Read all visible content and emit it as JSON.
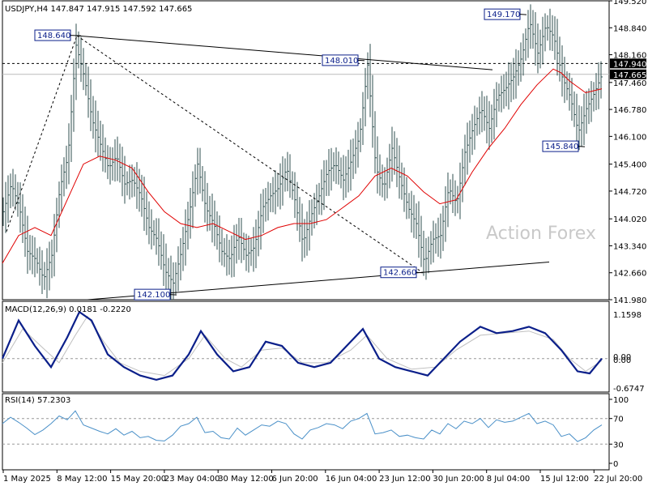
{
  "chart_data": [
    {
      "type": "candlestick",
      "header": "USDJPY,H4  147.847 147.915 147.592 147.665",
      "watermark": "Action Forex",
      "y_ticks": [
        "149.520",
        "148.840",
        "148.160",
        "147.460",
        "146.780",
        "146.100",
        "145.400",
        "144.720",
        "144.020",
        "143.340",
        "142.660",
        "141.980"
      ],
      "ylim": [
        141.98,
        149.52
      ],
      "x_ticks": [
        "1 May 2025",
        "8 May 12:00",
        "15 May 20:00",
        "23 May 04:00",
        "30 May 12:00",
        "6 Jun 20:00",
        "16 Jun 04:00",
        "23 Jun 12:00",
        "30 Jun 20:00",
        "8 Jul 04:00",
        "15 Jul 12:00",
        "22 Jul 20:00"
      ],
      "price_labels": {
        "high": "147.940",
        "last": "147.665"
      },
      "annotations": [
        "148.640",
        "148.010",
        "149.170",
        "145.840",
        "142.100",
        "142.660"
      ],
      "close_path": [
        [
          0,
          144.2
        ],
        [
          10,
          144.9
        ],
        [
          20,
          144.3
        ],
        [
          30,
          143.2
        ],
        [
          40,
          143.0
        ],
        [
          50,
          142.5
        ],
        [
          60,
          143.1
        ],
        [
          70,
          144.8
        ],
        [
          80,
          145.6
        ],
        [
          90,
          148.4
        ],
        [
          100,
          147.6
        ],
        [
          110,
          146.5
        ],
        [
          120,
          145.9
        ],
        [
          130,
          145.3
        ],
        [
          140,
          145.6
        ],
        [
          150,
          144.9
        ],
        [
          160,
          145.0
        ],
        [
          170,
          144.6
        ],
        [
          180,
          143.8
        ],
        [
          190,
          143.5
        ],
        [
          200,
          142.7
        ],
        [
          210,
          142.4
        ],
        [
          220,
          143.2
        ],
        [
          230,
          144.2
        ],
        [
          240,
          145.4
        ],
        [
          250,
          144.3
        ],
        [
          260,
          143.9
        ],
        [
          270,
          143.2
        ],
        [
          280,
          143.0
        ],
        [
          290,
          143.6
        ],
        [
          300,
          143.1
        ],
        [
          310,
          143.3
        ],
        [
          320,
          144.3
        ],
        [
          330,
          144.6
        ],
        [
          340,
          144.8
        ],
        [
          350,
          145.3
        ],
        [
          360,
          144.5
        ],
        [
          370,
          143.4
        ],
        [
          380,
          144.1
        ],
        [
          390,
          144.6
        ],
        [
          400,
          145.2
        ],
        [
          410,
          145.4
        ],
        [
          420,
          145.0
        ],
        [
          430,
          145.5
        ],
        [
          440,
          146.1
        ],
        [
          450,
          147.9
        ],
        [
          460,
          145.3
        ],
        [
          470,
          144.8
        ],
        [
          480,
          145.8
        ],
        [
          490,
          145.0
        ],
        [
          500,
          144.3
        ],
        [
          510,
          143.9
        ],
        [
          520,
          142.9
        ],
        [
          530,
          143.5
        ],
        [
          540,
          143.6
        ],
        [
          550,
          144.8
        ],
        [
          560,
          144.4
        ],
        [
          570,
          145.7
        ],
        [
          580,
          146.3
        ],
        [
          590,
          146.8
        ],
        [
          600,
          146.3
        ],
        [
          610,
          147.1
        ],
        [
          620,
          147.3
        ],
        [
          630,
          147.6
        ],
        [
          640,
          148.1
        ],
        [
          650,
          149.0
        ],
        [
          660,
          148.2
        ],
        [
          670,
          148.9
        ],
        [
          680,
          148.6
        ],
        [
          690,
          147.6
        ],
        [
          700,
          147.1
        ],
        [
          710,
          146.2
        ],
        [
          720,
          146.8
        ],
        [
          730,
          147.2
        ],
        [
          740,
          147.7
        ]
      ],
      "ma_path": [
        [
          0,
          142.9
        ],
        [
          20,
          143.6
        ],
        [
          40,
          143.8
        ],
        [
          60,
          143.6
        ],
        [
          80,
          144.5
        ],
        [
          100,
          145.4
        ],
        [
          120,
          145.6
        ],
        [
          140,
          145.5
        ],
        [
          160,
          145.3
        ],
        [
          180,
          144.7
        ],
        [
          200,
          144.2
        ],
        [
          220,
          143.9
        ],
        [
          240,
          143.8
        ],
        [
          260,
          143.9
        ],
        [
          280,
          143.7
        ],
        [
          300,
          143.5
        ],
        [
          320,
          143.6
        ],
        [
          340,
          143.8
        ],
        [
          360,
          143.9
        ],
        [
          380,
          143.9
        ],
        [
          400,
          144.0
        ],
        [
          420,
          144.3
        ],
        [
          440,
          144.6
        ],
        [
          460,
          145.1
        ],
        [
          480,
          145.3
        ],
        [
          500,
          145.1
        ],
        [
          520,
          144.7
        ],
        [
          540,
          144.4
        ],
        [
          560,
          144.5
        ],
        [
          580,
          145.2
        ],
        [
          600,
          145.8
        ],
        [
          620,
          146.3
        ],
        [
          640,
          146.9
        ],
        [
          660,
          147.4
        ],
        [
          680,
          147.8
        ],
        [
          690,
          147.7
        ],
        [
          700,
          147.5
        ],
        [
          720,
          147.2
        ],
        [
          740,
          147.3
        ]
      ]
    },
    {
      "type": "line",
      "header": "MACD(12,26,9) 0.0181 -0.2220",
      "y_ticks": [
        "1.1598",
        "0.00",
        "0.00",
        "-0.6747"
      ],
      "ylim": [
        -0.6747,
        1.1598
      ],
      "macd_path": [
        [
          0,
          0.0
        ],
        [
          20,
          0.9
        ],
        [
          40,
          0.3
        ],
        [
          60,
          -0.2
        ],
        [
          80,
          0.5
        ],
        [
          95,
          1.1
        ],
        [
          110,
          0.9
        ],
        [
          130,
          0.1
        ],
        [
          150,
          -0.2
        ],
        [
          170,
          -0.4
        ],
        [
          190,
          -0.5
        ],
        [
          210,
          -0.4
        ],
        [
          230,
          0.1
        ],
        [
          245,
          0.65
        ],
        [
          265,
          0.1
        ],
        [
          285,
          -0.3
        ],
        [
          305,
          -0.2
        ],
        [
          325,
          0.4
        ],
        [
          345,
          0.3
        ],
        [
          365,
          -0.1
        ],
        [
          385,
          -0.2
        ],
        [
          405,
          -0.1
        ],
        [
          425,
          0.3
        ],
        [
          445,
          0.7
        ],
        [
          465,
          0.0
        ],
        [
          485,
          -0.2
        ],
        [
          505,
          -0.3
        ],
        [
          525,
          -0.4
        ],
        [
          545,
          0.0
        ],
        [
          565,
          0.4
        ],
        [
          590,
          0.75
        ],
        [
          610,
          0.6
        ],
        [
          630,
          0.65
        ],
        [
          650,
          0.75
        ],
        [
          670,
          0.6
        ],
        [
          690,
          0.2
        ],
        [
          710,
          -0.3
        ],
        [
          725,
          -0.35
        ],
        [
          740,
          0.0
        ]
      ],
      "signal_path": [
        [
          0,
          -0.1
        ],
        [
          25,
          0.7
        ],
        [
          50,
          0.25
        ],
        [
          70,
          -0.1
        ],
        [
          90,
          0.55
        ],
        [
          105,
          1.0
        ],
        [
          125,
          0.4
        ],
        [
          145,
          -0.1
        ],
        [
          170,
          -0.3
        ],
        [
          200,
          -0.4
        ],
        [
          230,
          0.0
        ],
        [
          250,
          0.55
        ],
        [
          275,
          0.0
        ],
        [
          295,
          -0.2
        ],
        [
          320,
          0.2
        ],
        [
          345,
          0.25
        ],
        [
          370,
          -0.1
        ],
        [
          400,
          -0.1
        ],
        [
          430,
          0.2
        ],
        [
          450,
          0.55
        ],
        [
          475,
          0.0
        ],
        [
          505,
          -0.25
        ],
        [
          535,
          -0.2
        ],
        [
          560,
          0.2
        ],
        [
          590,
          0.55
        ],
        [
          620,
          0.6
        ],
        [
          650,
          0.65
        ],
        [
          680,
          0.45
        ],
        [
          700,
          0.0
        ],
        [
          720,
          -0.3
        ],
        [
          740,
          -0.05
        ]
      ]
    },
    {
      "type": "line",
      "header": "RSI(14) 57.2303",
      "y_ticks": [
        "100",
        "70",
        "30",
        "0"
      ],
      "ylim": [
        0,
        100
      ],
      "rsi_path": [
        [
          0,
          62
        ],
        [
          10,
          72
        ],
        [
          20,
          64
        ],
        [
          30,
          55
        ],
        [
          40,
          45
        ],
        [
          50,
          52
        ],
        [
          60,
          62
        ],
        [
          70,
          74
        ],
        [
          80,
          68
        ],
        [
          90,
          82
        ],
        [
          100,
          60
        ],
        [
          110,
          55
        ],
        [
          120,
          50
        ],
        [
          130,
          46
        ],
        [
          140,
          54
        ],
        [
          150,
          44
        ],
        [
          160,
          50
        ],
        [
          170,
          40
        ],
        [
          180,
          42
        ],
        [
          190,
          36
        ],
        [
          200,
          35
        ],
        [
          210,
          44
        ],
        [
          220,
          58
        ],
        [
          230,
          62
        ],
        [
          240,
          72
        ],
        [
          250,
          48
        ],
        [
          260,
          50
        ],
        [
          270,
          40
        ],
        [
          280,
          38
        ],
        [
          290,
          55
        ],
        [
          300,
          44
        ],
        [
          310,
          52
        ],
        [
          320,
          60
        ],
        [
          330,
          58
        ],
        [
          340,
          66
        ],
        [
          350,
          62
        ],
        [
          360,
          46
        ],
        [
          370,
          38
        ],
        [
          380,
          52
        ],
        [
          390,
          56
        ],
        [
          400,
          62
        ],
        [
          410,
          60
        ],
        [
          420,
          54
        ],
        [
          430,
          66
        ],
        [
          440,
          70
        ],
        [
          450,
          78
        ],
        [
          460,
          46
        ],
        [
          470,
          48
        ],
        [
          480,
          52
        ],
        [
          490,
          42
        ],
        [
          500,
          44
        ],
        [
          510,
          40
        ],
        [
          520,
          38
        ],
        [
          530,
          52
        ],
        [
          540,
          46
        ],
        [
          550,
          62
        ],
        [
          560,
          54
        ],
        [
          570,
          66
        ],
        [
          580,
          62
        ],
        [
          590,
          70
        ],
        [
          600,
          56
        ],
        [
          610,
          68
        ],
        [
          620,
          64
        ],
        [
          630,
          66
        ],
        [
          640,
          72
        ],
        [
          650,
          78
        ],
        [
          660,
          62
        ],
        [
          670,
          66
        ],
        [
          680,
          60
        ],
        [
          690,
          42
        ],
        [
          700,
          46
        ],
        [
          710,
          34
        ],
        [
          720,
          40
        ],
        [
          730,
          52
        ],
        [
          740,
          60
        ]
      ]
    }
  ]
}
